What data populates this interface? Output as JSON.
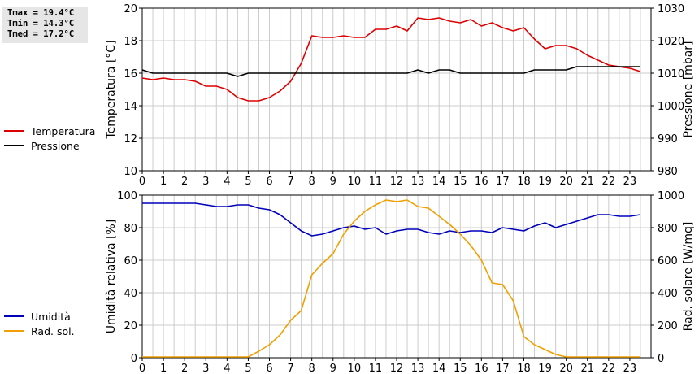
{
  "stats": {
    "tmax": "Tmax = 19.4°C",
    "tmin": "Tmin = 14.3°C",
    "tmed": "Tmed = 17.2°C"
  },
  "legend_top": [
    {
      "label": "Temperatura",
      "color": "#dd0000"
    },
    {
      "label": "Pressione",
      "color": "#000000"
    }
  ],
  "legend_bottom": [
    {
      "label": "Umidità",
      "color": "#0000bb"
    },
    {
      "label": "Rad. sol.",
      "color": "#f0a000"
    }
  ],
  "chart_data": [
    {
      "type": "line",
      "xlim": [
        0,
        24
      ],
      "x_ticks": [
        "0",
        "1",
        "2",
        "3",
        "4",
        "5",
        "6",
        "7",
        "8",
        "9",
        "10",
        "11",
        "12",
        "13",
        "14",
        "15",
        "16",
        "17",
        "18",
        "19",
        "20",
        "21",
        "22",
        "23"
      ],
      "ylabel": "Temperatura [°C]",
      "ylim": [
        10,
        20
      ],
      "y_ticks": [
        "10",
        "12",
        "14",
        "16",
        "18",
        "20"
      ],
      "y2label": "Pressione [mbar]",
      "y2lim": [
        980,
        1030
      ],
      "y2_ticks": [
        "980",
        "990",
        "1000",
        "1010",
        "1020",
        "1030"
      ],
      "grid": true,
      "series": [
        {
          "name": "Temperatura",
          "color": "#dd0000",
          "axis": "left",
          "x": [
            0,
            0.5,
            1,
            1.5,
            2,
            2.5,
            3,
            3.5,
            4,
            4.5,
            5,
            5.5,
            6,
            6.5,
            7,
            7.5,
            8,
            8.5,
            9,
            9.5,
            10,
            10.5,
            11,
            11.5,
            12,
            12.5,
            13,
            13.5,
            14,
            14.5,
            15,
            15.5,
            16,
            16.5,
            17,
            17.5,
            18,
            18.5,
            19,
            19.5,
            20,
            20.5,
            21,
            21.5,
            22,
            22.5,
            23,
            23.5
          ],
          "values": [
            15.7,
            15.6,
            15.7,
            15.6,
            15.6,
            15.5,
            15.2,
            15.2,
            15.0,
            14.5,
            14.3,
            14.3,
            14.5,
            14.9,
            15.5,
            16.6,
            18.3,
            18.2,
            18.2,
            18.3,
            18.2,
            18.2,
            18.7,
            18.7,
            18.9,
            18.6,
            19.4,
            19.3,
            19.4,
            19.2,
            19.1,
            19.3,
            18.9,
            19.1,
            18.8,
            18.6,
            18.8,
            18.1,
            17.5,
            17.7,
            17.7,
            17.5,
            17.1,
            16.8,
            16.5,
            16.4,
            16.3,
            16.1
          ]
        },
        {
          "name": "Pressione",
          "color": "#000000",
          "axis": "right",
          "x": [
            0,
            0.5,
            1,
            1.5,
            2,
            2.5,
            3,
            3.5,
            4,
            4.5,
            5,
            5.5,
            6,
            6.5,
            7,
            7.5,
            8,
            8.5,
            9,
            9.5,
            10,
            10.5,
            11,
            11.5,
            12,
            12.5,
            13,
            13.5,
            14,
            14.5,
            15,
            15.5,
            16,
            16.5,
            17,
            17.5,
            18,
            18.5,
            19,
            19.5,
            20,
            20.5,
            21,
            21.5,
            22,
            22.5,
            23,
            23.5
          ],
          "values": [
            1011,
            1010,
            1010,
            1010,
            1010,
            1010,
            1010,
            1010,
            1010,
            1009,
            1010,
            1010,
            1010,
            1010,
            1010,
            1010,
            1010,
            1010,
            1010,
            1010,
            1010,
            1010,
            1010,
            1010,
            1010,
            1010,
            1011,
            1010,
            1011,
            1011,
            1010,
            1010,
            1010,
            1010,
            1010,
            1010,
            1010,
            1011,
            1011,
            1011,
            1011,
            1012,
            1012,
            1012,
            1012,
            1012,
            1012,
            1012
          ]
        }
      ]
    },
    {
      "type": "line",
      "xlim": [
        0,
        24
      ],
      "x_ticks": [
        "0",
        "1",
        "2",
        "3",
        "4",
        "5",
        "6",
        "7",
        "8",
        "9",
        "10",
        "11",
        "12",
        "13",
        "14",
        "15",
        "16",
        "17",
        "18",
        "19",
        "20",
        "21",
        "22",
        "23"
      ],
      "ylabel": "Umidità relativa [%]",
      "ylim": [
        0,
        100
      ],
      "y_ticks": [
        "0",
        "20",
        "40",
        "60",
        "80",
        "100"
      ],
      "y2label": "Rad. solare [W/mq]",
      "y2lim": [
        0,
        1000
      ],
      "y2_ticks": [
        "0",
        "200",
        "400",
        "600",
        "800",
        "1000"
      ],
      "grid": true,
      "series": [
        {
          "name": "Umidità",
          "color": "#0000bb",
          "axis": "left",
          "x": [
            0,
            0.5,
            1,
            1.5,
            2,
            2.5,
            3,
            3.5,
            4,
            4.5,
            5,
            5.5,
            6,
            6.5,
            7,
            7.5,
            8,
            8.5,
            9,
            9.5,
            10,
            10.5,
            11,
            11.5,
            12,
            12.5,
            13,
            13.5,
            14,
            14.5,
            15,
            15.5,
            16,
            16.5,
            17,
            17.5,
            18,
            18.5,
            19,
            19.5,
            20,
            20.5,
            21,
            21.5,
            22,
            22.5,
            23,
            23.5
          ],
          "values": [
            95,
            95,
            95,
            95,
            95,
            95,
            94,
            93,
            93,
            94,
            94,
            92,
            91,
            88,
            83,
            78,
            75,
            76,
            78,
            80,
            81,
            79,
            80,
            76,
            78,
            79,
            79,
            77,
            76,
            78,
            77,
            78,
            78,
            77,
            80,
            79,
            78,
            81,
            83,
            80,
            82,
            84,
            86,
            88,
            88,
            87,
            87,
            88
          ]
        },
        {
          "name": "Rad. sol.",
          "color": "#f0a000",
          "axis": "right",
          "x": [
            0,
            0.5,
            1,
            1.5,
            2,
            2.5,
            3,
            3.5,
            4,
            4.5,
            5,
            5.5,
            6,
            6.5,
            7,
            7.5,
            8,
            8.5,
            9,
            9.5,
            10,
            10.5,
            11,
            11.5,
            12,
            12.5,
            13,
            13.5,
            14,
            14.5,
            15,
            15.5,
            16,
            16.5,
            17,
            17.5,
            18,
            18.5,
            19,
            19.5,
            20,
            20.5,
            21,
            21.5,
            22,
            22.5,
            23,
            23.5
          ],
          "values": [
            5,
            5,
            5,
            5,
            5,
            5,
            5,
            5,
            5,
            5,
            5,
            40,
            80,
            140,
            230,
            290,
            510,
            580,
            640,
            760,
            840,
            900,
            940,
            970,
            960,
            970,
            930,
            920,
            870,
            820,
            760,
            690,
            600,
            460,
            450,
            350,
            130,
            80,
            50,
            20,
            5,
            5,
            5,
            5,
            5,
            5,
            5,
            5
          ]
        }
      ]
    }
  ]
}
